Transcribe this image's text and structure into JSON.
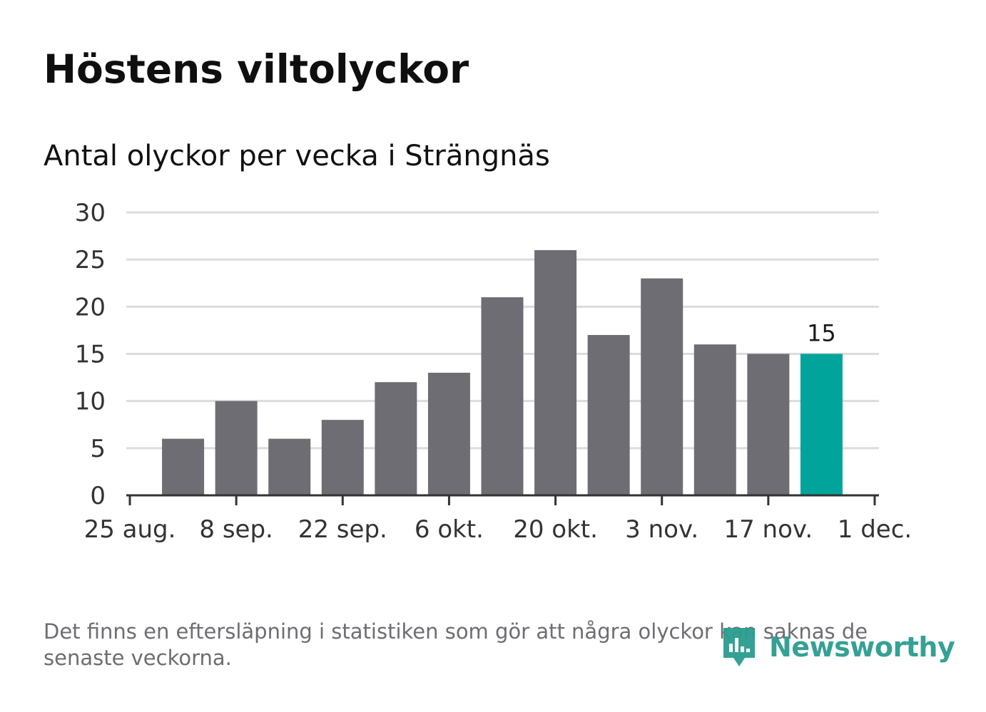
{
  "title": "Höstens viltolyckor",
  "subtitle": "Antal olyckor per vecka i Strängnäs",
  "footnote": "Det finns en eftersläpning i statistiken som gör att några olyckor kan saknas de senaste veckorna.",
  "brand": {
    "name": "Newsworthy",
    "logo_icon": "newsworthy-logo-icon",
    "color": "#2a9d8f"
  },
  "chart_data": {
    "type": "bar",
    "title": "Antal olyckor per vecka i Strängnäs",
    "xlabel": "",
    "ylabel": "",
    "x_start_day": 0,
    "x_end_day": 98,
    "bar_days": [
      7,
      14,
      21,
      28,
      35,
      42,
      49,
      56,
      63,
      70,
      77,
      84,
      91
    ],
    "values": [
      6,
      10,
      6,
      8,
      12,
      13,
      21,
      26,
      17,
      23,
      16,
      15,
      15
    ],
    "highlight_index": 12,
    "highlight_label": "15",
    "x_ticks": [
      {
        "day": 0,
        "label": "25 aug."
      },
      {
        "day": 14,
        "label": "8 sep."
      },
      {
        "day": 28,
        "label": "22 sep."
      },
      {
        "day": 42,
        "label": "6 okt."
      },
      {
        "day": 56,
        "label": "20 okt."
      },
      {
        "day": 70,
        "label": "3 nov."
      },
      {
        "day": 84,
        "label": "17 nov."
      },
      {
        "day": 98,
        "label": "1 dec."
      }
    ],
    "y_ticks": [
      {
        "value": 0,
        "label": "0"
      },
      {
        "value": 5,
        "label": "5"
      },
      {
        "value": 10,
        "label": "10"
      },
      {
        "value": 15,
        "label": "15"
      },
      {
        "value": 20,
        "label": "20"
      },
      {
        "value": 25,
        "label": "25"
      },
      {
        "value": 30,
        "label": "30"
      }
    ],
    "ylim": [
      0,
      30
    ],
    "grid": true,
    "colors": {
      "bar": "#6e6d73",
      "highlight": "#00a49a",
      "grid": "#dcdcdc",
      "axis": "#333333"
    }
  }
}
